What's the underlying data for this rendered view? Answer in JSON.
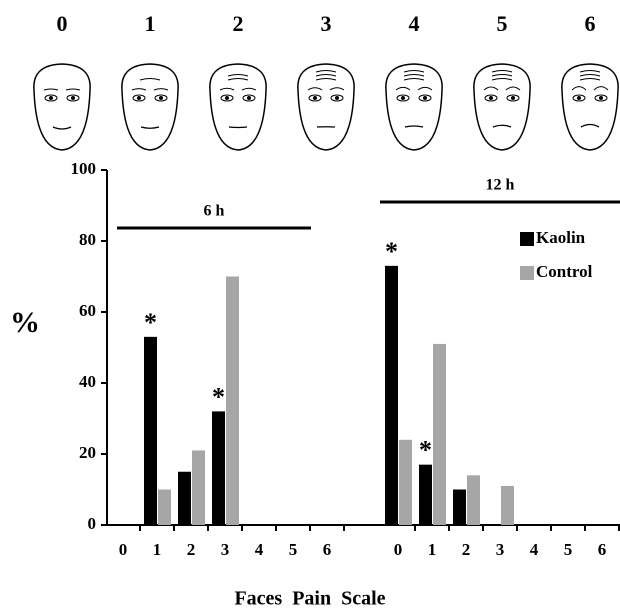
{
  "faces": [
    "0",
    "1",
    "2",
    "3",
    "4",
    "5",
    "6"
  ],
  "chart_data": {
    "type": "bar",
    "categories": [
      "0",
      "1",
      "2",
      "3",
      "4",
      "5",
      "6",
      "0",
      "1",
      "2",
      "3",
      "4",
      "5",
      "6"
    ],
    "groups": [
      {
        "name": "6 h"
      },
      {
        "name": "12 h"
      }
    ],
    "series": [
      {
        "name": "Kaolin",
        "color": "#000000",
        "values": [
          0,
          53,
          15,
          32,
          0,
          0,
          0,
          73,
          17,
          10,
          0,
          0,
          0,
          0
        ],
        "markers": [
          null,
          "*",
          null,
          "*",
          null,
          null,
          null,
          "*",
          "*",
          null,
          null,
          null,
          null,
          null
        ]
      },
      {
        "name": "Control",
        "color": "#a6a6a6",
        "values": [
          0,
          10,
          21,
          70,
          0,
          0,
          0,
          24,
          51,
          14,
          11,
          0,
          0,
          0
        ]
      }
    ],
    "y_label": "%",
    "x_label": "Faces  Pain  Scale",
    "ylim": [
      0,
      100
    ],
    "yticks": [
      0,
      20,
      40,
      60,
      80,
      100
    ]
  }
}
